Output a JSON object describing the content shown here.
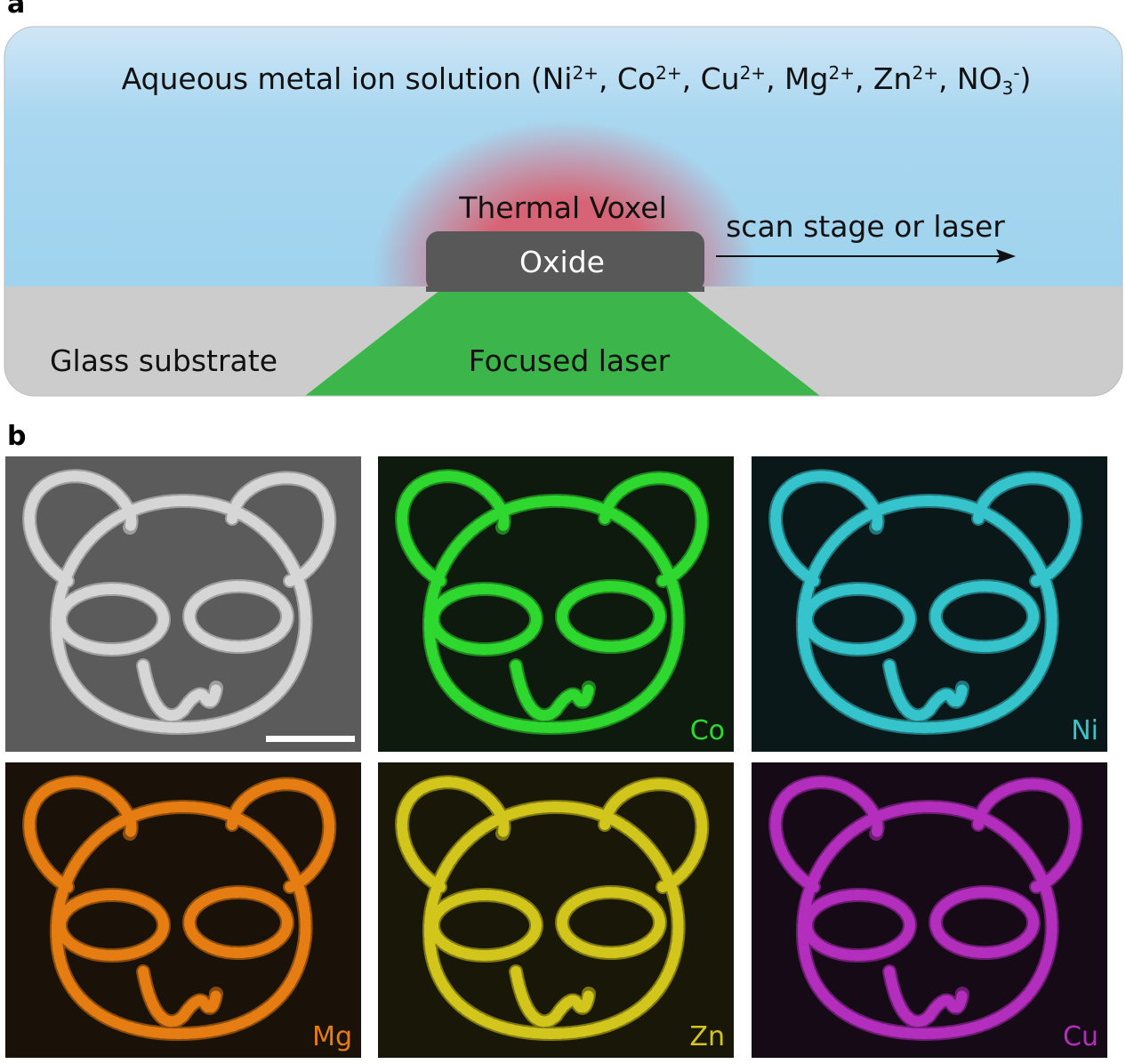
{
  "panel_a": {
    "label": "a",
    "solution": [
      {
        "text": "Aqueous metal ion solution (Ni",
        "style": "normal"
      },
      {
        "text": "2+",
        "style": "sup"
      },
      {
        "text": ", Co",
        "style": "normal"
      },
      {
        "text": "2+",
        "style": "sup"
      },
      {
        "text": ", Cu",
        "style": "normal"
      },
      {
        "text": "2+",
        "style": "sup"
      },
      {
        "text": ", Mg",
        "style": "normal"
      },
      {
        "text": "2+",
        "style": "sup"
      },
      {
        "text": ", Zn",
        "style": "normal"
      },
      {
        "text": "2+",
        "style": "sup"
      },
      {
        "text": ", NO",
        "style": "normal"
      },
      {
        "text": "3",
        "style": "sub"
      },
      {
        "text": "-",
        "style": "sup"
      },
      {
        "text": ")",
        "style": "normal"
      }
    ],
    "thermal_voxel": "Thermal Voxel",
    "oxide": "Oxide",
    "scan": "scan stage or laser",
    "substrate": "Glass substrate",
    "laser": "Focused laser"
  },
  "panel_b": {
    "label": "b",
    "sem_image": {
      "color": "#d6d6d6",
      "background": "#5b5b5b"
    },
    "maps": [
      {
        "element": "Co",
        "color": "#2fd82f",
        "background": "#0d1a0d"
      },
      {
        "element": "Ni",
        "color": "#35c4cc",
        "background": "#0b1819"
      },
      {
        "element": "Mg",
        "color": "#e57d12",
        "background": "#1a1208"
      },
      {
        "element": "Zn",
        "color": "#d2c51c",
        "background": "#191808"
      },
      {
        "element": "Cu",
        "color": "#b32ebd",
        "background": "#150a16"
      }
    ]
  }
}
